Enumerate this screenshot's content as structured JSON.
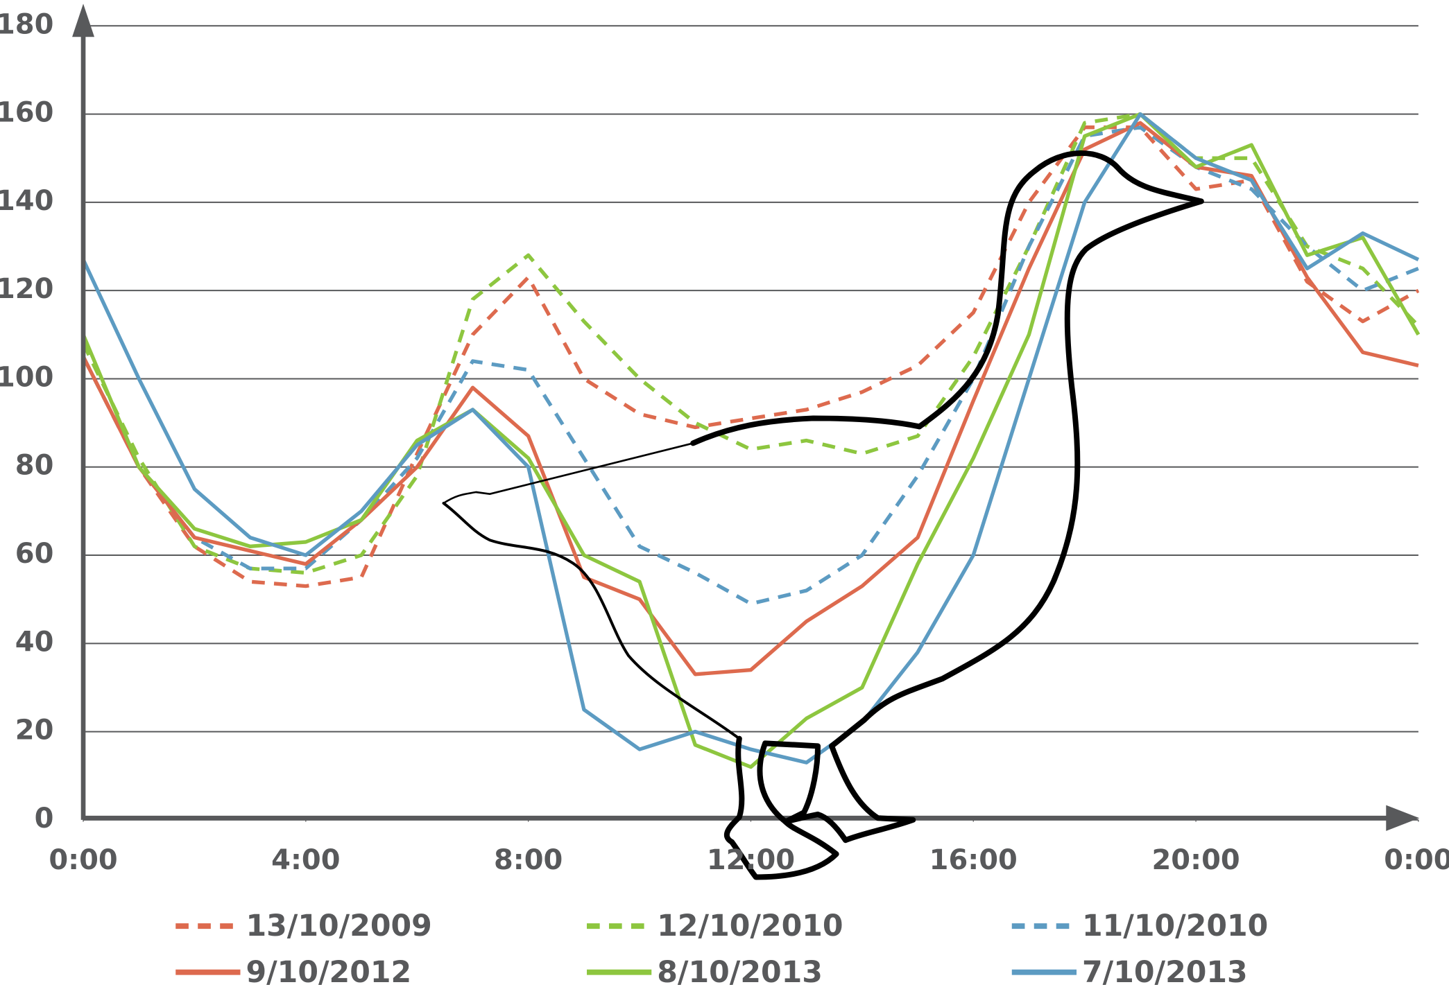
{
  "chart_data": {
    "type": "line",
    "x": [
      0,
      1,
      2,
      3,
      4,
      5,
      6,
      7,
      8,
      9,
      10,
      11,
      12,
      13,
      14,
      15,
      16,
      17,
      18,
      19,
      20,
      21,
      22,
      23,
      24
    ],
    "xlim": [
      0,
      24
    ],
    "xticks": [
      {
        "value": 0,
        "label": "0:00"
      },
      {
        "value": 4,
        "label": "4:00"
      },
      {
        "value": 8,
        "label": "8:00"
      },
      {
        "value": 12,
        "label": "12:00"
      },
      {
        "value": 16,
        "label": "16:00"
      },
      {
        "value": 20,
        "label": "20:00"
      },
      {
        "value": 24,
        "label": "0:00"
      }
    ],
    "ylim": [
      0,
      180
    ],
    "yticks": [
      0,
      20,
      40,
      60,
      80,
      100,
      120,
      140,
      160,
      180
    ],
    "grid": true,
    "series": [
      {
        "name": "13/10/2009",
        "color": "#dd6a4e",
        "dashed": true,
        "values": [
          105,
          80,
          62,
          54,
          53,
          55,
          83,
          110,
          123,
          100,
          92,
          89,
          91,
          93,
          97,
          103,
          115,
          140,
          157,
          157,
          143,
          145,
          122,
          113,
          120
        ]
      },
      {
        "name": "12/10/2010",
        "color": "#8dc63f",
        "dashed": true,
        "values": [
          108,
          82,
          62,
          57,
          56,
          60,
          78,
          118,
          128,
          113,
          100,
          90,
          84,
          86,
          83,
          87,
          105,
          130,
          158,
          160,
          150,
          150,
          130,
          125,
          112
        ]
      },
      {
        "name": "11/10/2010",
        "color": "#5c9bc2",
        "dashed": true,
        "values": [
          105,
          80,
          64,
          57,
          57,
          68,
          82,
          104,
          102,
          82,
          62,
          56,
          49,
          52,
          60,
          78,
          100,
          130,
          155,
          157,
          148,
          143,
          130,
          120,
          125
        ]
      },
      {
        "name": "9/10/2012",
        "color": "#dd6a4e",
        "dashed": false,
        "values": [
          105,
          80,
          64,
          61,
          58,
          68,
          80,
          98,
          87,
          55,
          50,
          33,
          34,
          45,
          53,
          64,
          95,
          125,
          152,
          158,
          148,
          146,
          123,
          106,
          103
        ]
      },
      {
        "name": "8/10/2013",
        "color": "#8dc63f",
        "dashed": false,
        "values": [
          110,
          80,
          66,
          62,
          63,
          68,
          86,
          93,
          82,
          60,
          54,
          17,
          12,
          23,
          30,
          58,
          82,
          110,
          155,
          160,
          148,
          153,
          128,
          132,
          110
        ]
      },
      {
        "name": "7/10/2013",
        "color": "#5c9bc2",
        "dashed": false,
        "values": [
          127,
          100,
          75,
          64,
          60,
          70,
          85,
          93,
          80,
          25,
          16,
          20,
          16,
          13,
          22,
          38,
          60,
          100,
          140,
          160,
          150,
          145,
          125,
          133,
          127
        ]
      }
    ]
  }
}
